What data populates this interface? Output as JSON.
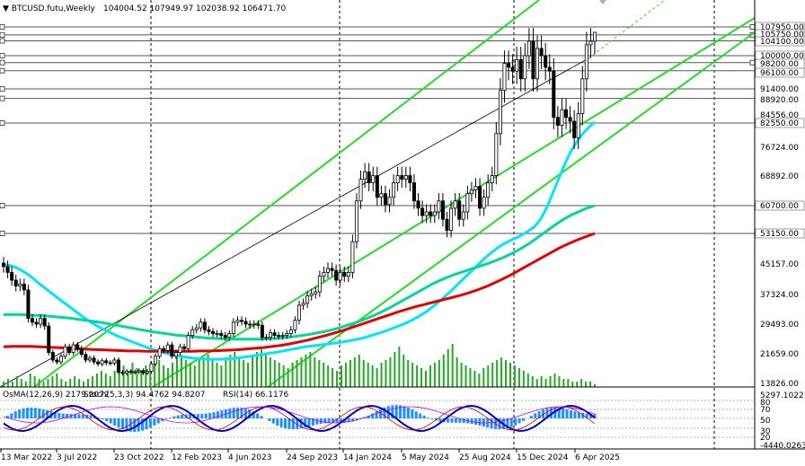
{
  "header": {
    "symbol": "BTCUSD.futu,Weekly",
    "ohlc": "104004.52 107949.97 102038.92 106471.70"
  },
  "sub_header": {
    "osma": "OsMA(12,26,9) 2179.2072",
    "stoch": "Stoch(5,3,3) 94.4762 94.8207",
    "rsi": "RSI(14) 66.1176"
  },
  "colors": {
    "candle": "#000000",
    "ma_cyan": "#00e5ff",
    "ma_teal": "#00d89a",
    "ma_red": "#e60000",
    "channel": "#22dd22",
    "volume": "#22aa22",
    "hist": "#1e90ff",
    "stoch_main": "#0000c8",
    "stoch_signal": "#d00000",
    "rsi": "#b400ff"
  },
  "chart_data": {
    "type": "candlestick",
    "timeframe": "Weekly",
    "x_ticks": [
      "13 Mar 2022",
      "3 Jul 2022",
      "23 Oct 2022",
      "12 Feb 2023",
      "4 Jun 2023",
      "24 Sep 2023",
      "14 Jan 2024",
      "5 May 2024",
      "25 Aug 2024",
      "15 Dec 2024",
      "6 Apr 2025"
    ],
    "y_ticks": [
      107950,
      105750,
      104100,
      100000,
      98200,
      96100,
      91400,
      88920,
      84556,
      82550,
      76724,
      68892,
      60700,
      53150,
      45157,
      37324,
      29493,
      21659,
      13826
    ],
    "y_ticks_labels": [
      "107950.00",
      "105750.00",
      "104100.00",
      "100000.00",
      "98200.00",
      "96100.00",
      "91400.00",
      "88920.00",
      "84556.00",
      "82550.00",
      "76724.00",
      "68892.00",
      "60700.00",
      "53150.00",
      "45157.00",
      "37324.00",
      "29493.00",
      "21659.00",
      "13826.00"
    ],
    "level_lines": [
      107950,
      105750,
      104100,
      100000,
      98200,
      96100,
      91400,
      88920,
      82550,
      60700,
      53150
    ],
    "closes": [
      44500,
      43000,
      41000,
      39500,
      40000,
      38500,
      31000,
      30000,
      29500,
      31000,
      29000,
      22000,
      20000,
      19500,
      21000,
      23500,
      22000,
      24000,
      23000,
      21500,
      20000,
      20500,
      19500,
      19000,
      19800,
      19300,
      19200,
      20000,
      16800,
      16500,
      17000,
      16800,
      16900,
      17200,
      16600,
      17000,
      19000,
      21000,
      23000,
      22500,
      24000,
      21000,
      22000,
      23500,
      23000,
      26500,
      28000,
      28500,
      30000,
      28000,
      27500,
      27000,
      27000,
      26500,
      26000,
      27000,
      30000,
      30500,
      30200,
      29500,
      29300,
      29500,
      29200,
      26000,
      26000,
      27200,
      26500,
      26300,
      26500,
      27000,
      28000,
      30500,
      34500,
      35000,
      37000,
      37500,
      38000,
      42000,
      43000,
      44000,
      43500,
      41000,
      43000,
      42000,
      43000,
      51000,
      62000,
      68000,
      70000,
      67000,
      69000,
      63000,
      64000,
      61000,
      63000,
      67000,
      69000,
      68000,
      69000,
      67000,
      62000,
      60000,
      58000,
      59000,
      58000,
      59000,
      62000,
      57000,
      54000,
      60000,
      62000,
      57000,
      59000,
      64000,
      65000,
      66000,
      60000,
      63000,
      67000,
      69000,
      80000,
      91000,
      98000,
      97000,
      96000,
      99000,
      94000,
      100000,
      104000,
      94000,
      102000,
      100000,
      97000,
      96000,
      84000,
      82000,
      86000,
      84000,
      83000,
      79000,
      85000,
      94000,
      103000,
      104000,
      106470
    ],
    "series": [
      {
        "name": "MA cyan",
        "values": [
          45000,
          44800,
          44300,
          43500,
          42500,
          41300,
          40000,
          38800,
          37600,
          36400,
          35200,
          34000,
          32800,
          31600,
          30500,
          29500,
          28600,
          27800,
          27000,
          26300,
          25600,
          25000,
          24400,
          23800,
          23200,
          22700,
          22200,
          21800,
          21400,
          21100,
          20800,
          20600,
          20400,
          20300,
          20200,
          20200,
          20200,
          20300,
          20400,
          20600,
          20800,
          21000,
          21200,
          21500,
          21800,
          22000,
          22300,
          22600,
          22900,
          23200,
          23500,
          23700,
          23900,
          24100,
          24300,
          24500,
          24700,
          25000,
          25300,
          25600,
          26000,
          26500,
          27000,
          27500,
          28100,
          28700,
          29300,
          30000,
          30800,
          31700,
          32700,
          33900,
          35200,
          36600,
          38000,
          39500,
          41000,
          42500,
          44000,
          45500,
          47000,
          48300,
          49500,
          50500,
          51300,
          52000,
          52800,
          53800,
          55000,
          57000,
          60000,
          64000,
          68000,
          72000,
          75500,
          78000,
          80000,
          81500,
          82800
        ]
      },
      {
        "name": "MA teal",
        "values": [
          32000,
          32000,
          32000,
          31900,
          31800,
          31700,
          31500,
          31300,
          31100,
          30800,
          30500,
          30200,
          29900,
          29500,
          29100,
          28700,
          28300,
          27900,
          27500,
          27200,
          26900,
          26600,
          26400,
          26200,
          26000,
          25800,
          25700,
          25600,
          25500,
          25500,
          25500,
          25500,
          25600,
          25700,
          25900,
          26100,
          26400,
          26700,
          27100,
          27500,
          28000,
          28600,
          29300,
          30000,
          30800,
          31700,
          32700,
          33800,
          35000,
          36200,
          37400,
          38600,
          39800,
          40800,
          41700,
          42500,
          43200,
          43900,
          44600,
          45300,
          46100,
          47000,
          48000,
          49200,
          50500,
          52000,
          53600,
          55200,
          56700,
          58000,
          59000,
          60000,
          60700
        ]
      },
      {
        "name": "MA red",
        "values": [
          23500,
          23600,
          23600,
          23600,
          23500,
          23400,
          23300,
          23200,
          23000,
          22900,
          22800,
          22700,
          22600,
          22500,
          22400,
          22400,
          22300,
          22300,
          22300,
          22300,
          22300,
          22300,
          22400,
          22400,
          22500,
          22600,
          22700,
          22900,
          23100,
          23300,
          23600,
          23900,
          24300,
          24800,
          25300,
          25900,
          26500,
          27200,
          27900,
          28700,
          29500,
          30300,
          31100,
          31900,
          32700,
          33400,
          34100,
          34700,
          35300,
          35900,
          36500,
          37100,
          37800,
          38600,
          39500,
          40500,
          41600,
          42800,
          44100,
          45400,
          46700,
          48000,
          49300,
          50400,
          51400,
          52300,
          53150
        ]
      }
    ],
    "volume": [
      2,
      3,
      2,
      4,
      3,
      2,
      5,
      4,
      3,
      2,
      3,
      4,
      5,
      3,
      2,
      3,
      4,
      3,
      2,
      3,
      4,
      5,
      6,
      5,
      4,
      6,
      7,
      8,
      6,
      9,
      7,
      6,
      8,
      7,
      9,
      10,
      8,
      7,
      9,
      11,
      12,
      10,
      9,
      8,
      10,
      11,
      12,
      10,
      9,
      8,
      11,
      12,
      13,
      11,
      10,
      9,
      12,
      13,
      14,
      12,
      11,
      10,
      9,
      8,
      7,
      9,
      10,
      11,
      12,
      13,
      11,
      10,
      9,
      8,
      7,
      6,
      8,
      9,
      10,
      11,
      12,
      10,
      9,
      8,
      7,
      9,
      10,
      11,
      13,
      15,
      12,
      10,
      9,
      8,
      7,
      6,
      8,
      9,
      10,
      12,
      14,
      16,
      11,
      9,
      8,
      7,
      6,
      5,
      7,
      8,
      9,
      10,
      11,
      10,
      9,
      8,
      7,
      6,
      5,
      4,
      3,
      4,
      3,
      4,
      5,
      4,
      3,
      3,
      2,
      2,
      3,
      2,
      2,
      1
    ],
    "osma": {
      "label": "OsMA(12,26,9)",
      "value": 2179.2072,
      "y_ticks": [
        "5297.1022",
        "-4440.0263"
      ]
    },
    "stoch": {
      "label": "Stoch(5,3,3)",
      "main": 94.4762,
      "signal": 94.8207
    },
    "rsi": {
      "label": "RSI(14)",
      "value": 66.1176,
      "levels": [
        "80",
        "70",
        "50",
        "30",
        "20"
      ]
    },
    "grid": false
  }
}
